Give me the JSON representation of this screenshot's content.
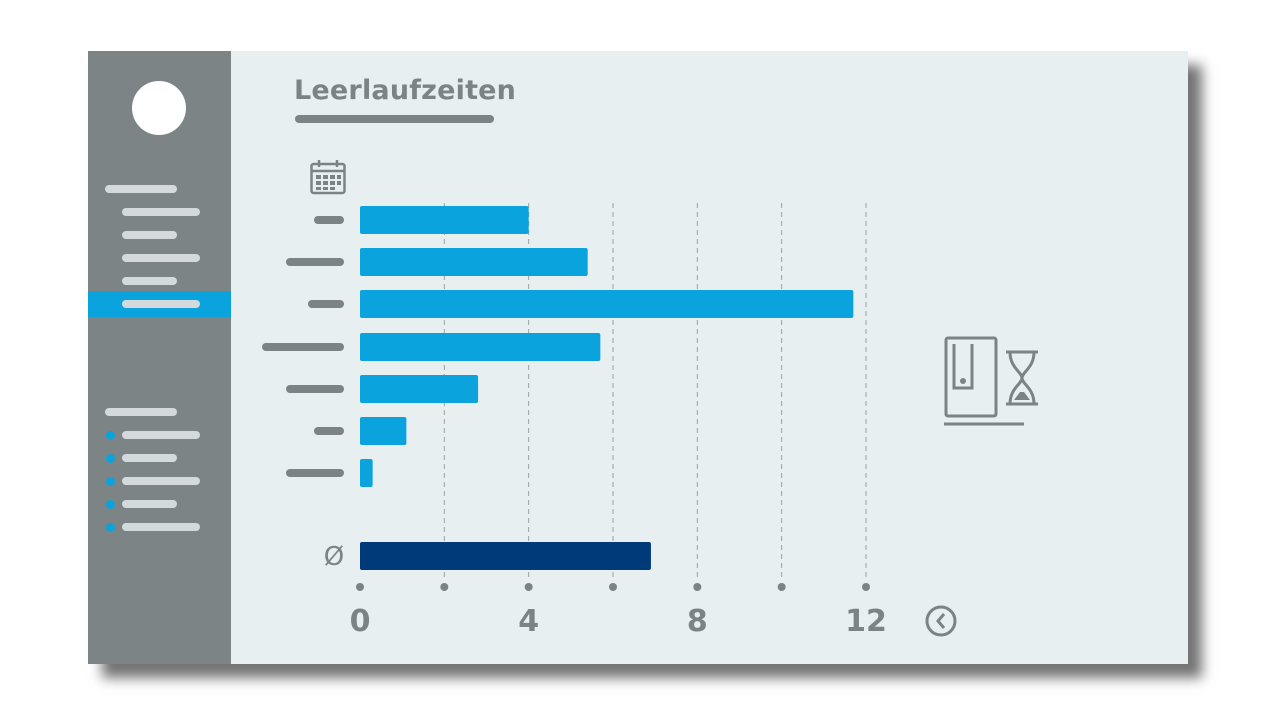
{
  "page": {
    "title": "Leerlaufzeiten"
  },
  "icons": {
    "calendar": "calendar-icon",
    "machine_idle": "machine-hourglass-icon",
    "clock": "clock-icon",
    "average": "average-icon"
  },
  "colors": {
    "bar": "#0aa3de",
    "average_bar": "#003a78",
    "sidebar": "#7c8485",
    "accent": "#0aa3de"
  },
  "chart_data": {
    "type": "bar",
    "orientation": "horizontal",
    "title": "Leerlaufzeiten",
    "xlabel": "",
    "ylabel": "",
    "x_ticks": [
      "0",
      "4",
      "8",
      "12"
    ],
    "xlim": [
      0,
      12
    ],
    "grid": true,
    "categories": [
      "",
      "",
      "",
      "",
      "",
      "",
      ""
    ],
    "values": [
      4.0,
      5.4,
      11.7,
      5.7,
      2.8,
      1.1,
      0.3
    ],
    "average": {
      "label": "Ø",
      "value": 6.9
    }
  }
}
